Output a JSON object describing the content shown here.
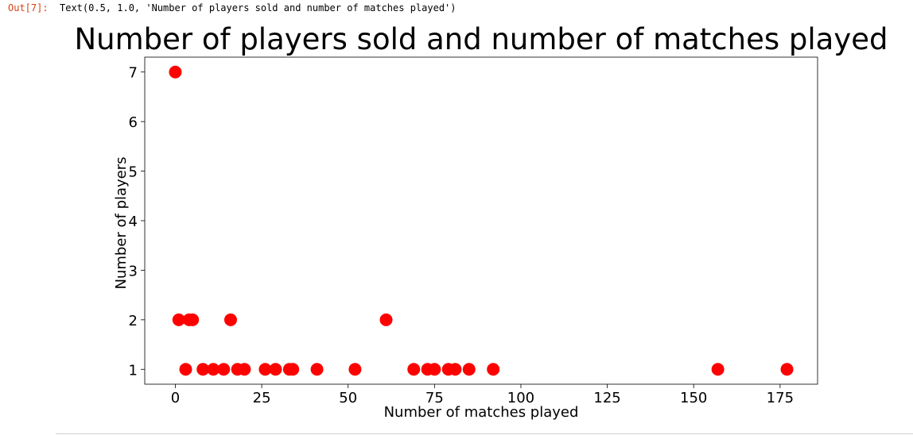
{
  "cell": {
    "out_prompt": "Out[7]:",
    "out_text": "Text(0.5, 1.0, 'Number of players sold and number of matches played')"
  },
  "chart_data": {
    "type": "scatter",
    "title": "Number of players sold and number of matches played",
    "xlabel": "Number of matches played",
    "ylabel": "Number of players",
    "xlim": [
      -8.85,
      185.85
    ],
    "ylim": [
      0.7,
      7.3
    ],
    "xticks": [
      0,
      25,
      50,
      75,
      100,
      125,
      150,
      175
    ],
    "yticks": [
      1,
      2,
      3,
      4,
      5,
      6,
      7
    ],
    "grid": false,
    "marker_color": "#ff0000",
    "points": [
      {
        "x": 0,
        "y": 7
      },
      {
        "x": 1,
        "y": 2
      },
      {
        "x": 3,
        "y": 1
      },
      {
        "x": 4,
        "y": 2
      },
      {
        "x": 5,
        "y": 2
      },
      {
        "x": 8,
        "y": 1
      },
      {
        "x": 11,
        "y": 1
      },
      {
        "x": 14,
        "y": 1
      },
      {
        "x": 16,
        "y": 2
      },
      {
        "x": 18,
        "y": 1
      },
      {
        "x": 20,
        "y": 1
      },
      {
        "x": 26,
        "y": 1
      },
      {
        "x": 29,
        "y": 1
      },
      {
        "x": 33,
        "y": 1
      },
      {
        "x": 34,
        "y": 1
      },
      {
        "x": 41,
        "y": 1
      },
      {
        "x": 52,
        "y": 1
      },
      {
        "x": 61,
        "y": 2
      },
      {
        "x": 69,
        "y": 1
      },
      {
        "x": 73,
        "y": 1
      },
      {
        "x": 75,
        "y": 1
      },
      {
        "x": 79,
        "y": 1
      },
      {
        "x": 81,
        "y": 1
      },
      {
        "x": 85,
        "y": 1
      },
      {
        "x": 92,
        "y": 1
      },
      {
        "x": 157,
        "y": 1
      },
      {
        "x": 177,
        "y": 1
      }
    ]
  }
}
